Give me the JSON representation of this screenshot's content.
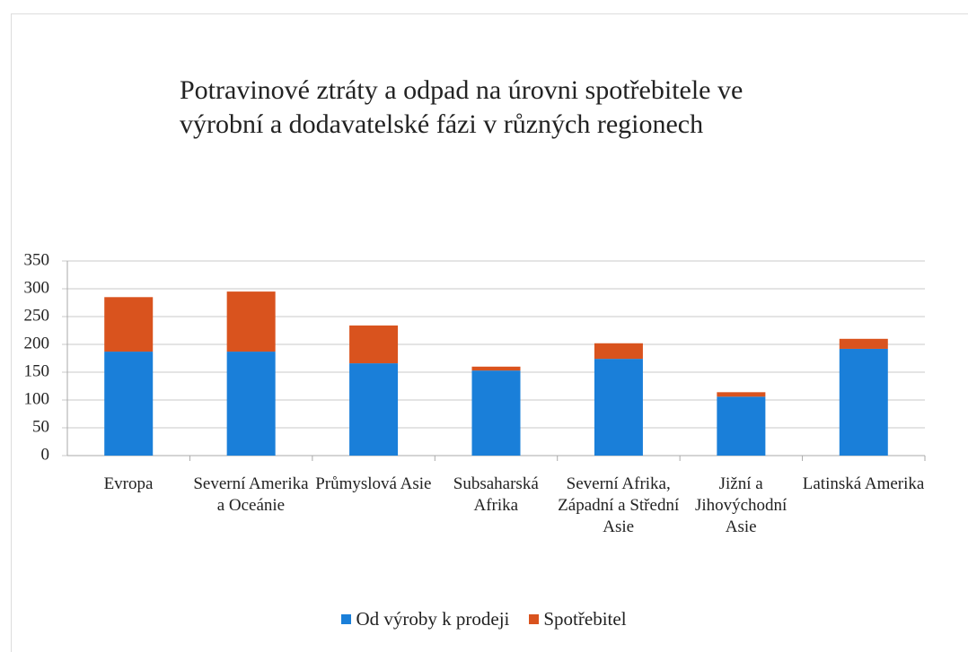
{
  "chart_data": {
    "type": "stacked_bar",
    "title": "Potravinové ztráty a odpad na úrovni spotřebitele ve výrobní a dodavatelské fázi v různých regionech",
    "categories": [
      "Evropa",
      "Severní Amerika a Oceánie",
      "Průmyslová Asie",
      "Subsaharská Afrika",
      "Severní Afrika, Západní a Střední Asie",
      "Jižní a Jihovýchodní Asie",
      "Latinská Amerika"
    ],
    "series": [
      {
        "name": "Od výroby k prodeji",
        "color": "#1a7fd9",
        "values": [
          187,
          187,
          166,
          153,
          174,
          106,
          192
        ]
      },
      {
        "name": "Spotřebitel",
        "color": "#d9531e",
        "values": [
          98,
          108,
          68,
          7,
          28,
          8,
          18
        ]
      }
    ],
    "ylim": [
      0,
      350
    ],
    "yticks": [
      0,
      50,
      100,
      150,
      200,
      250,
      300,
      350
    ],
    "grid": true,
    "legend": "bottom"
  }
}
